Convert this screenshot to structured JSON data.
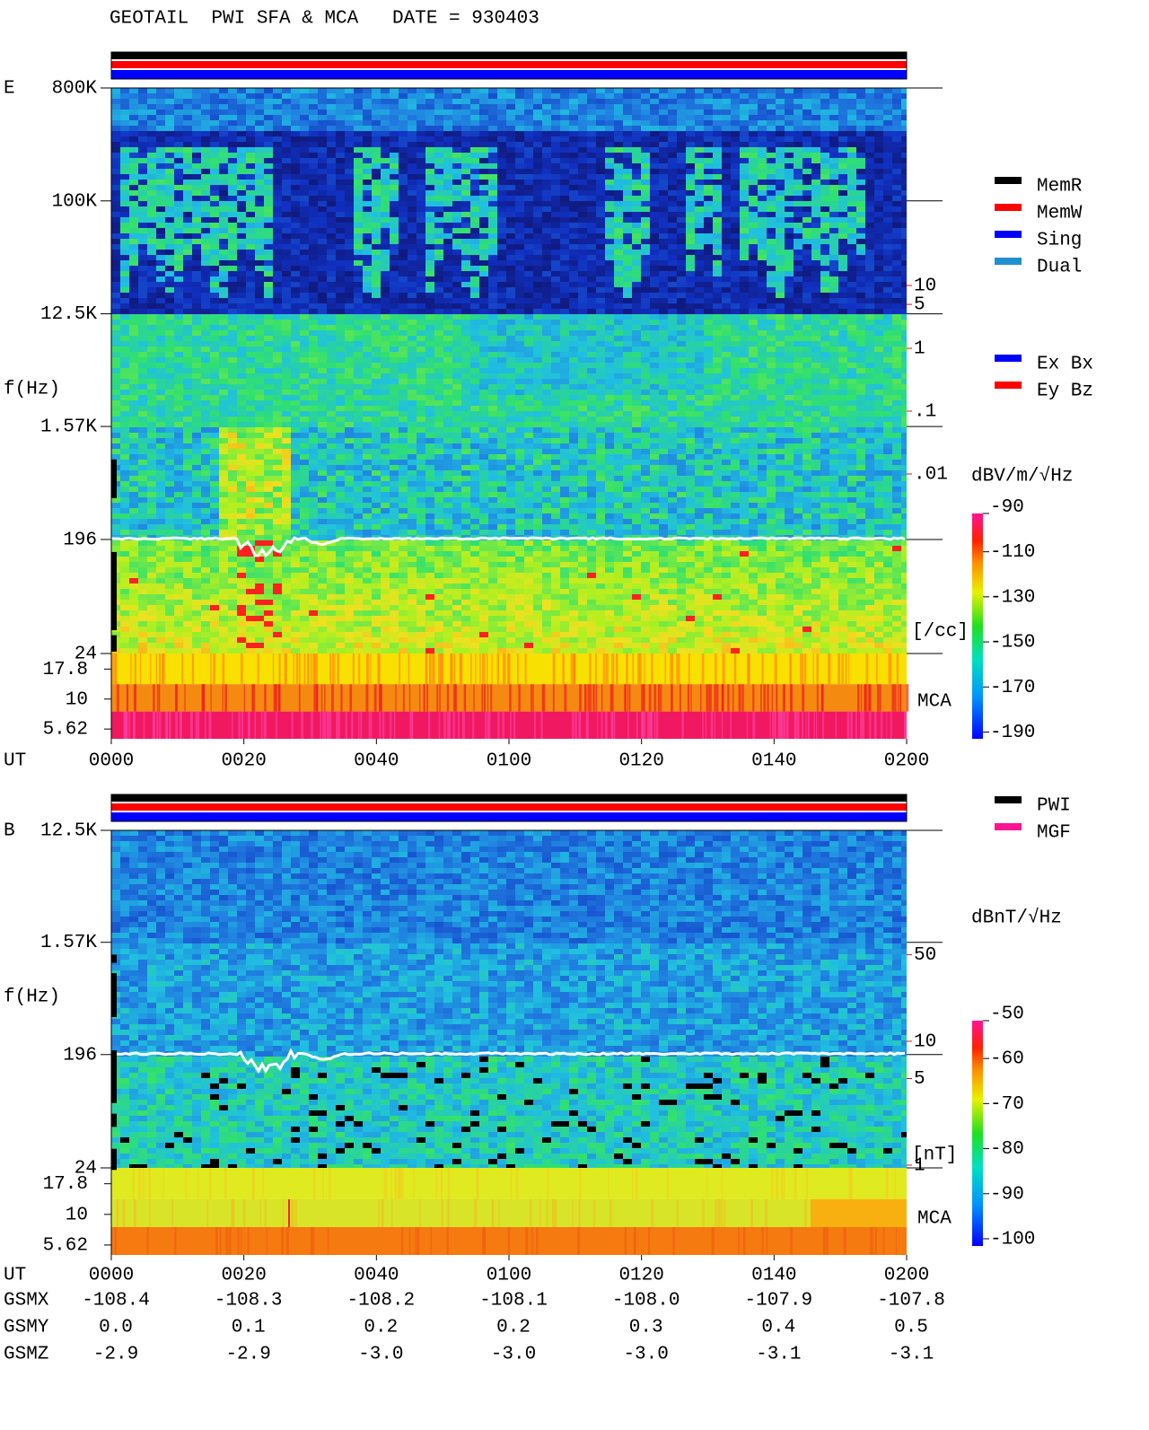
{
  "title": "GEOTAIL  PWI SFA & MCA   DATE = 930403",
  "chart_data": [
    {
      "type": "heatmap",
      "panel_label": "E",
      "y_label": "f(Hz)",
      "x_label": "UT",
      "log_y": true,
      "ylim": [
        24,
        800000
      ],
      "yticks": [
        {
          "value": 800000,
          "label": "800K"
        },
        {
          "value": 100000,
          "label": "100K"
        },
        {
          "value": 12500,
          "label": "12.5K"
        },
        {
          "value": 1570,
          "label": "1.57K"
        },
        196,
        24
      ],
      "mca_label": "MCA",
      "mca_ylim": [
        4.66,
        24
      ],
      "mca_yticks": [
        17.8,
        10,
        5.62
      ],
      "xticks": [
        "0000",
        "0020",
        "0040",
        "0100",
        "0120",
        "0140",
        "0200"
      ],
      "y2lim": [
        1.39e-05,
        13900
      ],
      "y2_log": true,
      "y2_color": "#ff0000",
      "y2ticks": [
        10,
        5,
        1,
        {
          "value": 0.1,
          "label": ".1"
        },
        {
          "value": 0.01,
          "label": ".01"
        }
      ],
      "y2_label": "[/cc]",
      "colorbar": {
        "label": "dBV/m/√Hz",
        "lim": [
          -193,
          -93
        ],
        "ticks": [
          -90,
          -110,
          -130,
          -150,
          -170,
          -190
        ]
      },
      "legend": [
        {
          "name": "MemR",
          "color": "#000000"
        },
        {
          "name": "MemW",
          "color": "#ff0000"
        },
        {
          "name": "Sing",
          "color": "#0000ff"
        },
        {
          "name": "Dual",
          "color": "#2090d0"
        }
      ],
      "legend2": [
        {
          "name": "Ex Bx",
          "color": "#0000ff"
        },
        {
          "name": "Ey Bz",
          "color": "#ff0000"
        }
      ]
    },
    {
      "type": "heatmap",
      "panel_label": "B",
      "y_label": "f(Hz)",
      "x_label": "UT",
      "log_y": true,
      "ylim": [
        24,
        12500
      ],
      "yticks": [
        {
          "value": 12500,
          "label": "12.5K"
        },
        {
          "value": 1570,
          "label": "1.57K"
        },
        196,
        24
      ],
      "mca_label": "MCA",
      "mca_ylim": [
        4.66,
        24
      ],
      "mca_yticks": [
        17.8,
        10,
        5.62
      ],
      "xticks": [
        "0000",
        "0020",
        "0040",
        "0100",
        "0120",
        "0140",
        "0200"
      ],
      "y2lim": [
        0.95,
        505
      ],
      "y2_log": true,
      "y2_color": "#ff0000",
      "y2ticks": [
        50,
        10,
        5,
        1
      ],
      "y2_label": "[nT]",
      "colorbar": {
        "label": "dBnT/√Hz",
        "lim": [
          -101.6,
          -51.6
        ],
        "ticks": [
          -50,
          -60,
          -70,
          -80,
          -90,
          -100
        ]
      },
      "legend": [
        {
          "name": "PWI",
          "color": "#000000"
        },
        {
          "name": "MGF",
          "color": "#ff1493"
        }
      ]
    }
  ],
  "orbit": {
    "rows": [
      {
        "label": "GSMX",
        "values": [
          "-108.4",
          "-108.3",
          "-108.2",
          "-108.1",
          "-108.0",
          "-107.9",
          "-107.8"
        ]
      },
      {
        "label": "GSMY",
        "values": [
          "0.0",
          "0.1",
          "0.2",
          "0.2",
          "0.3",
          "0.4",
          "0.5"
        ]
      },
      {
        "label": "GSMZ",
        "values": [
          "-2.9",
          "-2.9",
          "-3.0",
          "-3.0",
          "-3.0",
          "-3.1",
          "-3.1"
        ]
      }
    ]
  }
}
